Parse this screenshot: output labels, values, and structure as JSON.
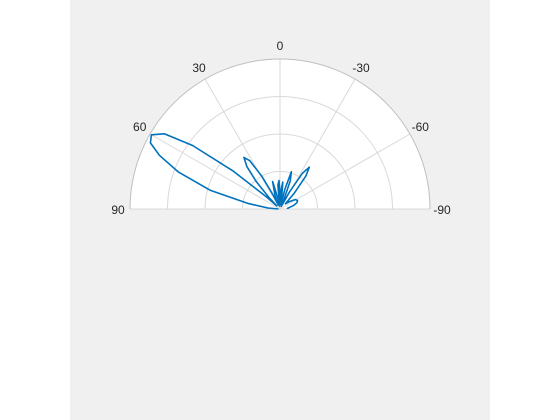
{
  "window": {
    "background_color": "#f0f0f0",
    "figure_color": "#ffffff"
  },
  "chart_data": {
    "type": "polar-line",
    "title": "",
    "theta_range_deg": [
      -90,
      90
    ],
    "theta_zero": "top",
    "theta_direction": "counterclockwise",
    "theta_ticks": [
      90,
      60,
      30,
      0,
      -30,
      -60,
      -90
    ],
    "theta_tick_labels": [
      "90",
      "60",
      "30",
      "0",
      "-30",
      "-60",
      "-90"
    ],
    "r_range": [
      0,
      1
    ],
    "r_grid": [
      0.25,
      0.5,
      0.75,
      1.0
    ],
    "r_tick_labels_shown": false,
    "grid": true,
    "line_color": "#0072bd",
    "grid_color": "#d9d9d9",
    "series": [
      {
        "points": [
          {
            "theta": 90.0,
            "r": 0.01
          },
          {
            "theta": 85.0,
            "r": 0.08
          },
          {
            "theta": 80.0,
            "r": 0.22
          },
          {
            "theta": 75.0,
            "r": 0.48
          },
          {
            "theta": 70.0,
            "r": 0.72
          },
          {
            "theta": 66.0,
            "r": 0.88
          },
          {
            "theta": 63.0,
            "r": 0.97
          },
          {
            "theta": 60.0,
            "r": 0.99
          },
          {
            "theta": 57.0,
            "r": 0.92
          },
          {
            "theta": 54.0,
            "r": 0.72
          },
          {
            "theta": 51.0,
            "r": 0.4
          },
          {
            "theta": 48.0,
            "r": 0.12
          },
          {
            "theta": 46.0,
            "r": 0.03
          },
          {
            "theta": 44.0,
            "r": 0.1
          },
          {
            "theta": 41.0,
            "r": 0.24
          },
          {
            "theta": 38.0,
            "r": 0.36
          },
          {
            "theta": 35.0,
            "r": 0.42
          },
          {
            "theta": 32.0,
            "r": 0.38
          },
          {
            "theta": 29.0,
            "r": 0.25
          },
          {
            "theta": 26.0,
            "r": 0.1
          },
          {
            "theta": 24.0,
            "r": 0.03
          },
          {
            "theta": 20.0,
            "r": 0.1
          },
          {
            "theta": 15.0,
            "r": 0.19
          },
          {
            "theta": 11.0,
            "r": 0.07
          },
          {
            "theta": 8.0,
            "r": 0.02
          },
          {
            "theta": 5.0,
            "r": 0.16
          },
          {
            "theta": 2.0,
            "r": 0.19
          },
          {
            "theta": 0.0,
            "r": 0.1
          },
          {
            "theta": -2.0,
            "r": 0.05
          },
          {
            "theta": -4.0,
            "r": 0.14
          },
          {
            "theta": -6.0,
            "r": 0.18
          },
          {
            "theta": -8.0,
            "r": 0.08
          },
          {
            "theta": -11.0,
            "r": 0.03
          },
          {
            "theta": -14.0,
            "r": 0.14
          },
          {
            "theta": -17.0,
            "r": 0.26
          },
          {
            "theta": -20.0,
            "r": 0.2
          },
          {
            "theta": -23.0,
            "r": 0.06
          },
          {
            "theta": -26.0,
            "r": 0.02
          },
          {
            "theta": -29.0,
            "r": 0.13
          },
          {
            "theta": -32.0,
            "r": 0.28
          },
          {
            "theta": -35.0,
            "r": 0.34
          },
          {
            "theta": -38.0,
            "r": 0.28
          },
          {
            "theta": -42.0,
            "r": 0.14
          },
          {
            "theta": -46.0,
            "r": 0.05
          },
          {
            "theta": -52.0,
            "r": 0.08
          },
          {
            "theta": -58.0,
            "r": 0.12
          },
          {
            "theta": -64.0,
            "r": 0.13
          },
          {
            "theta": -70.0,
            "r": 0.12
          },
          {
            "theta": -76.0,
            "r": 0.09
          },
          {
            "theta": -82.0,
            "r": 0.06
          },
          {
            "theta": -86.0,
            "r": 0.05
          },
          {
            "theta": -90.0,
            "r": 0.05
          }
        ]
      }
    ]
  }
}
